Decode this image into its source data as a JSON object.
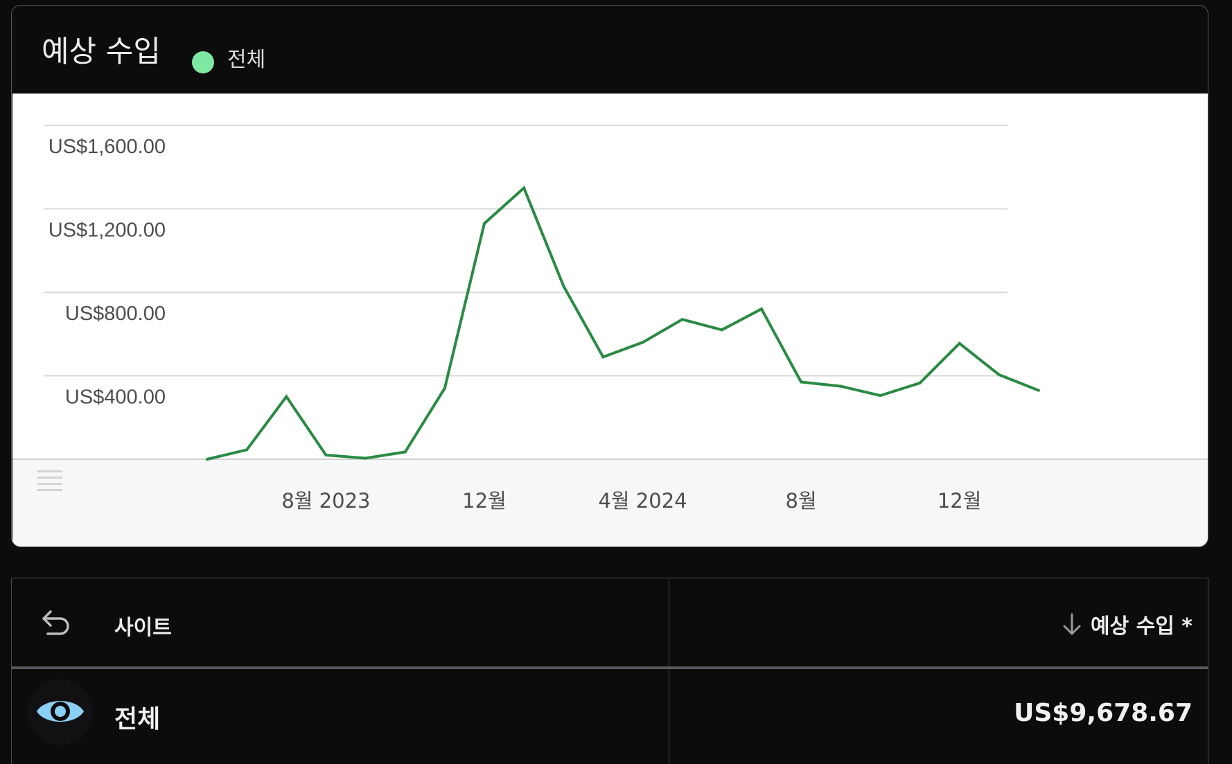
{
  "card": {
    "title": "예상 수입",
    "legend_label": "전체",
    "legend_color": "#7ee8a2"
  },
  "chart_data": {
    "type": "line",
    "series_color": "#2a8a43",
    "grid_color": "#d9d9d9",
    "grid": true,
    "ylim": [
      0,
      1600
    ],
    "y_ticks": [
      {
        "value": 1600,
        "label": "US$1,600.00"
      },
      {
        "value": 1200,
        "label": "US$1,200.00"
      },
      {
        "value": 800,
        "label": "US$800.00"
      },
      {
        "value": 400,
        "label": "US$400.00"
      }
    ],
    "x_tick_labels": [
      {
        "index": 3,
        "label": "8월 2023"
      },
      {
        "index": 7,
        "label": "12월"
      },
      {
        "index": 11,
        "label": "4월 2024"
      },
      {
        "index": 15,
        "label": "8월"
      },
      {
        "index": 19,
        "label": "12월"
      }
    ],
    "series": [
      {
        "values": [
          0,
          45,
          300,
          20,
          5,
          35,
          340,
          1130,
          1300,
          830,
          490,
          560,
          670,
          620,
          720,
          370,
          350,
          305,
          365,
          555,
          405,
          330
        ]
      }
    ]
  },
  "table": {
    "back_icon": "undo-arrow-icon",
    "col1_label": "사이트",
    "col2_label": "예상 수입 *",
    "sort_icon": "arrow-down-icon",
    "rows": [
      {
        "icon": "eye-icon",
        "label": "전체",
        "value": "US$9,678.67"
      }
    ],
    "eye_color": "#8ccff5"
  }
}
